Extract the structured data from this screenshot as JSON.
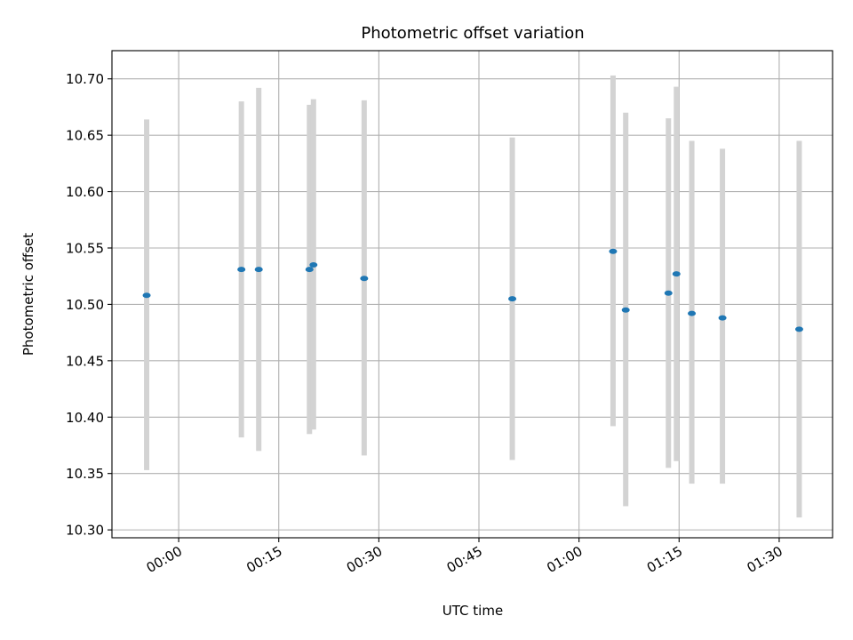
{
  "chart_data": {
    "type": "scatter",
    "title": "Photometric offset variation",
    "xlabel": "UTC time",
    "ylabel": "Photometric offset",
    "x_ticks": [
      "00:00",
      "00:15",
      "00:30",
      "00:45",
      "01:00",
      "01:15",
      "01:30"
    ],
    "x_tick_minutes": [
      0,
      15,
      30,
      45,
      60,
      75,
      90
    ],
    "xlim_minutes": [
      -10,
      98
    ],
    "ylim": [
      10.293,
      10.725
    ],
    "y_ticks": [
      10.3,
      10.35,
      10.4,
      10.45,
      10.5,
      10.55,
      10.6,
      10.65,
      10.7
    ],
    "grid": true,
    "x_tick_rotation": 30,
    "colors": {
      "point": "#1f77b4",
      "errorbar": "#d3d3d3",
      "grid": "#b0b0b0"
    },
    "points": [
      {
        "x_minutes": -4.8,
        "y": 10.508,
        "y_low": 10.353,
        "y_high": 10.664
      },
      {
        "x_minutes": 9.4,
        "y": 10.531,
        "y_low": 10.382,
        "y_high": 10.68
      },
      {
        "x_minutes": 12.0,
        "y": 10.531,
        "y_low": 10.37,
        "y_high": 10.692
      },
      {
        "x_minutes": 19.6,
        "y": 10.531,
        "y_low": 10.385,
        "y_high": 10.677
      },
      {
        "x_minutes": 20.2,
        "y": 10.535,
        "y_low": 10.389,
        "y_high": 10.682
      },
      {
        "x_minutes": 27.8,
        "y": 10.523,
        "y_low": 10.366,
        "y_high": 10.681
      },
      {
        "x_minutes": 50.0,
        "y": 10.505,
        "y_low": 10.362,
        "y_high": 10.648
      },
      {
        "x_minutes": 65.1,
        "y": 10.547,
        "y_low": 10.392,
        "y_high": 10.703
      },
      {
        "x_minutes": 67.0,
        "y": 10.495,
        "y_low": 10.321,
        "y_high": 10.67
      },
      {
        "x_minutes": 73.4,
        "y": 10.51,
        "y_low": 10.355,
        "y_high": 10.665
      },
      {
        "x_minutes": 74.6,
        "y": 10.527,
        "y_low": 10.361,
        "y_high": 10.693
      },
      {
        "x_minutes": 76.9,
        "y": 10.492,
        "y_low": 10.341,
        "y_high": 10.645
      },
      {
        "x_minutes": 81.5,
        "y": 10.488,
        "y_low": 10.341,
        "y_high": 10.638
      },
      {
        "x_minutes": 93.0,
        "y": 10.478,
        "y_low": 10.311,
        "y_high": 10.645
      }
    ]
  }
}
